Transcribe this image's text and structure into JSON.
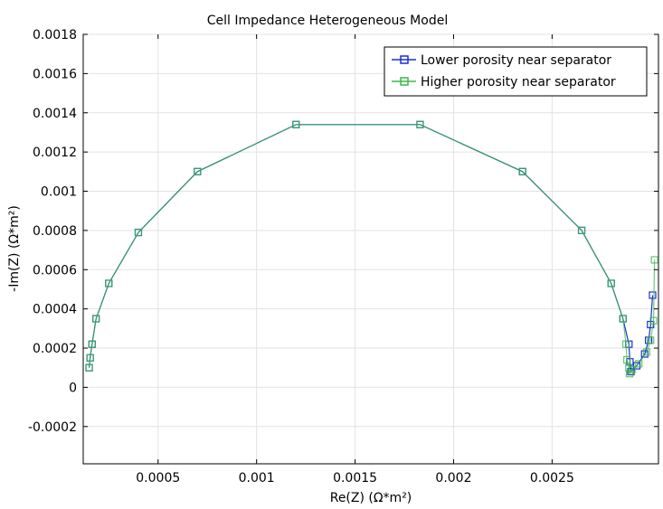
{
  "chart_data": {
    "type": "line",
    "title": "Cell Impedance Heterogeneous Model",
    "xlabel": "Re(Z) (Ω*m²)",
    "ylabel": "-Im(Z) (Ω*m²)",
    "xlim": [
      0.00012,
      0.00304
    ],
    "ylim": [
      -0.00039,
      0.0018
    ],
    "xticks": [
      0.0005,
      0.001,
      0.0015,
      0.002,
      0.0025
    ],
    "xtick_labels": [
      "0.0005",
      "0.001",
      "0.0015",
      "0.002",
      "0.0025"
    ],
    "yticks": [
      -0.0002,
      0,
      0.0002,
      0.0004,
      0.0006,
      0.0008,
      0.001,
      0.0012,
      0.0014,
      0.0016,
      0.0018
    ],
    "ytick_labels": [
      "-0.0002",
      "0",
      "0.0002",
      "0.0004",
      "0.0006",
      "0.0008",
      "0.001",
      "0.0012",
      "0.0014",
      "0.0016",
      "0.0018"
    ],
    "grid": true,
    "legend_position": "top-right",
    "series": [
      {
        "name": "Lower porosity near separator",
        "color": "#1f2fd6",
        "marker": "square",
        "x": [
          0.00015,
          0.000155,
          0.000165,
          0.000185,
          0.00025,
          0.0004,
          0.0007,
          0.0012,
          0.00183,
          0.00235,
          0.00265,
          0.0028,
          0.00286,
          0.00289,
          0.002895,
          0.0029,
          0.00293,
          0.00297,
          0.00299,
          0.003,
          0.00301
        ],
        "y": [
          0.0001,
          0.00015,
          0.00022,
          0.00035,
          0.00053,
          0.00079,
          0.0011,
          0.00134,
          0.00134,
          0.0011,
          0.0008,
          0.00053,
          0.00035,
          0.00022,
          0.00013,
          8e-05,
          0.00011,
          0.00017,
          0.00024,
          0.00032,
          0.00047
        ]
      },
      {
        "name": "Higher porosity near separator",
        "color": "#3cb84a",
        "marker": "square",
        "x": [
          0.00015,
          0.000155,
          0.000165,
          0.000185,
          0.00025,
          0.0004,
          0.0007,
          0.0012,
          0.00183,
          0.00235,
          0.00265,
          0.0028,
          0.00286,
          0.002875,
          0.00288,
          0.00289,
          0.002893,
          0.002905,
          0.00294,
          0.00298,
          0.003,
          0.003015,
          0.00302
        ],
        "y": [
          0.0001,
          0.00015,
          0.00022,
          0.00035,
          0.00053,
          0.00079,
          0.0011,
          0.00134,
          0.00134,
          0.0011,
          0.0008,
          0.00053,
          0.00035,
          0.00022,
          0.00014,
          0.0001,
          7e-05,
          9e-05,
          0.00012,
          0.00018,
          0.00024,
          0.00034,
          0.00065
        ]
      }
    ]
  }
}
